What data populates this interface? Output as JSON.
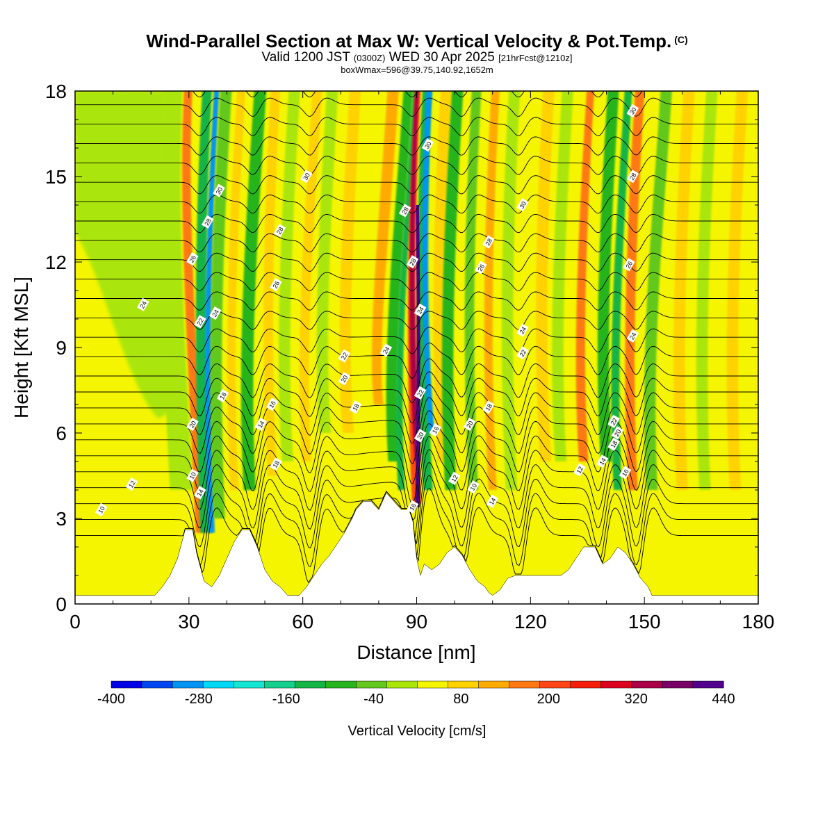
{
  "header": {
    "title": "Wind-Parallel Section at Max W: Vertical Velocity & Pot.Temp.",
    "copyright": "(C)",
    "valid_main": "Valid 1200 JST",
    "valid_utc": "(0300Z)",
    "valid_date": "WED 30 Apr 2025",
    "forecast": "[21hrFcst@1210z]",
    "box_info": "boxWmax=596@39.75,140.92,1652m"
  },
  "colors": {
    "palette": [
      "#0000e6",
      "#0046f0",
      "#0094f5",
      "#00d8f5",
      "#14e6d2",
      "#14d08c",
      "#14b446",
      "#28b41e",
      "#64c81e",
      "#aae60a",
      "#f5f500",
      "#ffd200",
      "#ffaa00",
      "#ff7814",
      "#ff4614",
      "#f51e0a",
      "#dc001e",
      "#aa0046",
      "#780064",
      "#50008c"
    ]
  },
  "chart_data": {
    "type": "heatmap",
    "xlabel": "Distance [nm]",
    "ylabel": "Height [Kft MSL]",
    "xlim": [
      0,
      180
    ],
    "ylim": [
      0,
      18
    ],
    "xticks": [
      0,
      30,
      60,
      90,
      120,
      150,
      180
    ],
    "yticks": [
      0,
      3,
      6,
      9,
      12,
      15,
      18
    ],
    "colorbar": {
      "label": "Vertical Velocity [cm/s]",
      "ticks": [
        -400,
        -280,
        -160,
        -40,
        80,
        200,
        320,
        440
      ],
      "min": -400,
      "max": 440,
      "step": 40
    },
    "terrain": [
      [
        0,
        0.3
      ],
      [
        21,
        0.3
      ],
      [
        23,
        0.6
      ],
      [
        25,
        1.0
      ],
      [
        27,
        1.6
      ],
      [
        28,
        2.1
      ],
      [
        29,
        2.6
      ],
      [
        31,
        2.6
      ],
      [
        32,
        1.8
      ],
      [
        34,
        0.8
      ],
      [
        36,
        0.6
      ],
      [
        38,
        1.0
      ],
      [
        40,
        1.6
      ],
      [
        42,
        2.2
      ],
      [
        44,
        2.6
      ],
      [
        46,
        2.6
      ],
      [
        48,
        2.0
      ],
      [
        50,
        1.2
      ],
      [
        52,
        0.8
      ],
      [
        54,
        0.6
      ],
      [
        56,
        0.3
      ],
      [
        59,
        0.3
      ],
      [
        61,
        0.6
      ],
      [
        63,
        1.0
      ],
      [
        65,
        1.4
      ],
      [
        67,
        1.7
      ],
      [
        69,
        2.1
      ],
      [
        71,
        2.5
      ],
      [
        73,
        3.0
      ],
      [
        74,
        3.3
      ],
      [
        76,
        3.6
      ],
      [
        78,
        3.6
      ],
      [
        80,
        3.3
      ],
      [
        81,
        3.6
      ],
      [
        82,
        3.9
      ],
      [
        84,
        3.6
      ],
      [
        86,
        3.3
      ],
      [
        88,
        3.3
      ],
      [
        89,
        2.9
      ],
      [
        90,
        1.6
      ],
      [
        91,
        1.0
      ],
      [
        92,
        1.4
      ],
      [
        94,
        1.2
      ],
      [
        96,
        1.4
      ],
      [
        98,
        1.8
      ],
      [
        100,
        2.0
      ],
      [
        102,
        1.7
      ],
      [
        104,
        1.2
      ],
      [
        106,
        0.8
      ],
      [
        108,
        0.6
      ],
      [
        109,
        0.4
      ],
      [
        110,
        0.3
      ],
      [
        112,
        0.5
      ],
      [
        114,
        0.9
      ],
      [
        116,
        1.0
      ],
      [
        120,
        1.0
      ],
      [
        124,
        1.0
      ],
      [
        128,
        1.0
      ],
      [
        130,
        1.2
      ],
      [
        132,
        1.6
      ],
      [
        134,
        2.0
      ],
      [
        137,
        2.0
      ],
      [
        139,
        1.4
      ],
      [
        141,
        1.6
      ],
      [
        143,
        2.0
      ],
      [
        145,
        1.8
      ],
      [
        147,
        1.4
      ],
      [
        149,
        0.9
      ],
      [
        151,
        0.6
      ],
      [
        152,
        0.3
      ],
      [
        180,
        0.3
      ]
    ],
    "theta_contour_labels": [
      {
        "x": 7,
        "y": 3.3,
        "label": "10"
      },
      {
        "x": 15,
        "y": 4.2,
        "label": "12"
      },
      {
        "x": 18,
        "y": 10.5,
        "label": "24"
      },
      {
        "x": 31,
        "y": 6.3,
        "label": "20"
      },
      {
        "x": 31,
        "y": 4.5,
        "label": "10"
      },
      {
        "x": 33,
        "y": 3.9,
        "label": "14"
      },
      {
        "x": 31,
        "y": 12.1,
        "label": "26"
      },
      {
        "x": 33,
        "y": 9.9,
        "label": "22"
      },
      {
        "x": 37,
        "y": 10.2,
        "label": "24"
      },
      {
        "x": 35,
        "y": 13.4,
        "label": "28"
      },
      {
        "x": 38,
        "y": 14.5,
        "label": "30"
      },
      {
        "x": 39,
        "y": 7.3,
        "label": "18"
      },
      {
        "x": 49,
        "y": 6.3,
        "label": "14"
      },
      {
        "x": 52,
        "y": 7.0,
        "label": "16"
      },
      {
        "x": 53,
        "y": 4.9,
        "label": "18"
      },
      {
        "x": 53,
        "y": 11.2,
        "label": "26"
      },
      {
        "x": 54,
        "y": 13.1,
        "label": "28"
      },
      {
        "x": 61,
        "y": 15.0,
        "label": "30"
      },
      {
        "x": 71,
        "y": 8.7,
        "label": "22"
      },
      {
        "x": 71,
        "y": 7.9,
        "label": "20"
      },
      {
        "x": 74,
        "y": 6.9,
        "label": "18"
      },
      {
        "x": 82,
        "y": 8.9,
        "label": "24"
      },
      {
        "x": 87,
        "y": 13.8,
        "label": "28"
      },
      {
        "x": 89,
        "y": 12.0,
        "label": "28"
      },
      {
        "x": 91,
        "y": 10.3,
        "label": "24"
      },
      {
        "x": 91,
        "y": 7.4,
        "label": "22"
      },
      {
        "x": 91,
        "y": 5.9,
        "label": "20"
      },
      {
        "x": 89,
        "y": 3.4,
        "label": "16"
      },
      {
        "x": 95,
        "y": 6.1,
        "label": "16"
      },
      {
        "x": 93,
        "y": 16.1,
        "label": "30"
      },
      {
        "x": 100,
        "y": 4.4,
        "label": "12"
      },
      {
        "x": 105,
        "y": 4.1,
        "label": "10"
      },
      {
        "x": 104,
        "y": 6.3,
        "label": "20"
      },
      {
        "x": 109,
        "y": 6.9,
        "label": "18"
      },
      {
        "x": 110,
        "y": 3.6,
        "label": "14"
      },
      {
        "x": 107,
        "y": 11.8,
        "label": "26"
      },
      {
        "x": 109,
        "y": 12.7,
        "label": "28"
      },
      {
        "x": 118,
        "y": 9.6,
        "label": "24"
      },
      {
        "x": 118,
        "y": 8.8,
        "label": "22"
      },
      {
        "x": 118,
        "y": 14.0,
        "label": "30"
      },
      {
        "x": 133,
        "y": 4.7,
        "label": "12"
      },
      {
        "x": 139,
        "y": 5.0,
        "label": "14"
      },
      {
        "x": 142,
        "y": 6.4,
        "label": "22"
      },
      {
        "x": 143,
        "y": 6.0,
        "label": "20"
      },
      {
        "x": 142,
        "y": 5.6,
        "label": "18"
      },
      {
        "x": 145,
        "y": 4.6,
        "label": "16"
      },
      {
        "x": 147,
        "y": 9.4,
        "label": "24"
      },
      {
        "x": 146,
        "y": 11.9,
        "label": "26"
      },
      {
        "x": 147,
        "y": 15.0,
        "label": "28"
      },
      {
        "x": 147,
        "y": 17.3,
        "label": "30"
      }
    ]
  }
}
